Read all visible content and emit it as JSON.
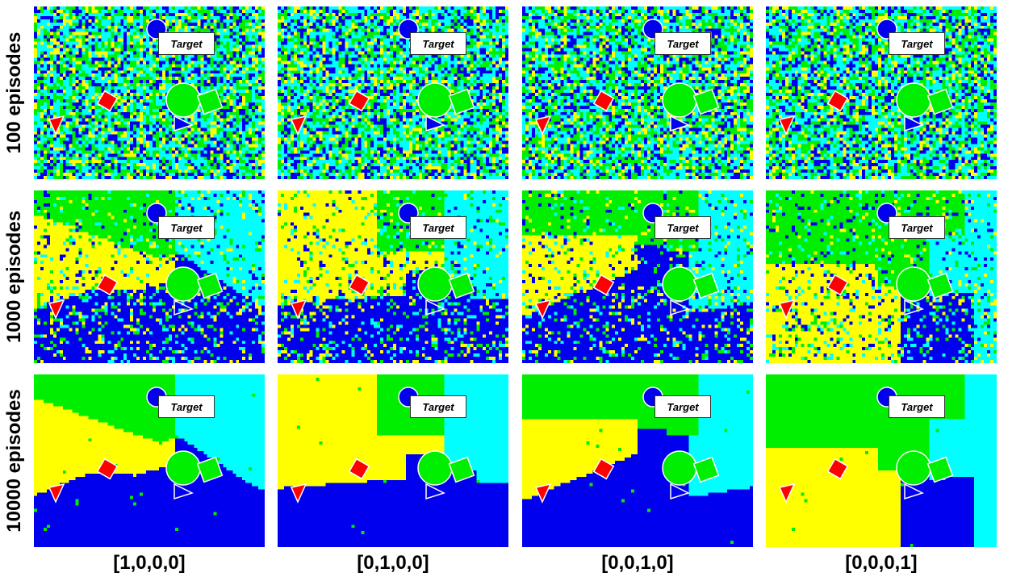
{
  "rows": [
    {
      "label": "100 episodes",
      "stage": "noisy"
    },
    {
      "label": "1000 episodes",
      "stage": "partial"
    },
    {
      "label": "10000 episodes",
      "stage": "converged"
    }
  ],
  "columns": [
    {
      "label": "[1,0,0,0]"
    },
    {
      "label": "[0,1,0,0]"
    },
    {
      "label": "[0,0,1,0]"
    },
    {
      "label": "[0,0,0,1]"
    }
  ],
  "target_label": "Target",
  "colors": {
    "green": "#00ee00",
    "cyan": "#00ffff",
    "blue": "#0000ee",
    "yellow": "#ffff00",
    "red": "#ff0000",
    "outline": "#ffffff"
  },
  "icons": [
    "blue-circle-icon",
    "green-circle-icon",
    "green-square-icon",
    "blue-triangle-icon",
    "red-diamond-icon",
    "red-triangle-icon"
  ]
}
